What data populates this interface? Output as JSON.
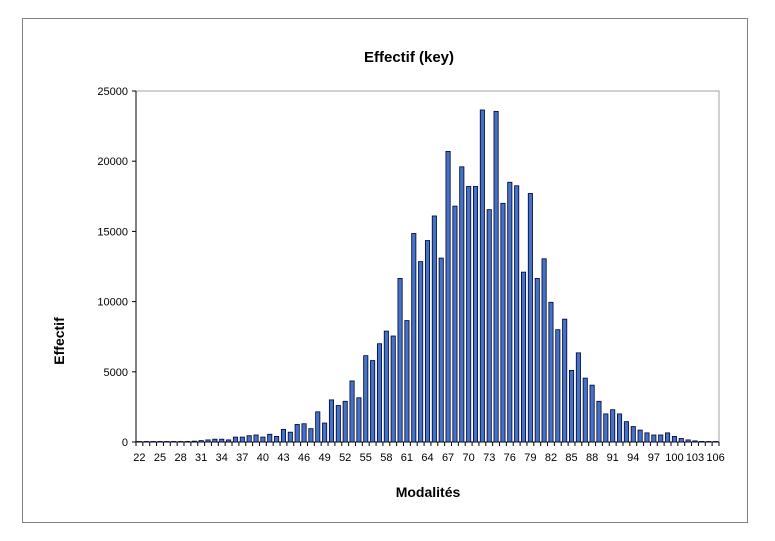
{
  "chart_data": {
    "type": "bar",
    "title": "Effectif (key)",
    "xlabel": "Modalités",
    "ylabel": "Effectif",
    "ylim": [
      0,
      25000
    ],
    "yticks": [
      "0",
      "5000",
      "10000",
      "15000",
      "20000",
      "25000"
    ],
    "xtick_labels": [
      "22",
      "25",
      "28",
      "31",
      "34",
      "37",
      "40",
      "43",
      "46",
      "49",
      "52",
      "55",
      "58",
      "61",
      "64",
      "67",
      "70",
      "73",
      "76",
      "79",
      "82",
      "85",
      "88",
      "91",
      "94",
      "97",
      "100",
      "103",
      "106"
    ],
    "grid": false,
    "legend": "none",
    "bar_color": "#4472C4",
    "categories": [
      22,
      23,
      24,
      25,
      26,
      27,
      28,
      29,
      30,
      31,
      32,
      33,
      34,
      35,
      36,
      37,
      38,
      39,
      40,
      41,
      42,
      43,
      44,
      45,
      46,
      47,
      48,
      49,
      50,
      51,
      52,
      53,
      54,
      55,
      56,
      57,
      58,
      59,
      60,
      61,
      62,
      63,
      64,
      65,
      66,
      67,
      68,
      69,
      70,
      71,
      72,
      73,
      74,
      75,
      76,
      77,
      78,
      79,
      80,
      81,
      82,
      83,
      84,
      85,
      86,
      87,
      88,
      89,
      90,
      91,
      92,
      93,
      94,
      95,
      96,
      97,
      98,
      99,
      100,
      101,
      102,
      103,
      104,
      105,
      106
    ],
    "values": [
      2,
      3,
      5,
      8,
      12,
      15,
      25,
      40,
      60,
      100,
      150,
      200,
      200,
      150,
      350,
      350,
      450,
      500,
      350,
      550,
      400,
      900,
      700,
      1250,
      1300,
      950,
      2150,
      1350,
      3000,
      2600,
      2900,
      4350,
      3150,
      6150,
      5800,
      7000,
      7900,
      7550,
      11650,
      8650,
      14850,
      12850,
      14350,
      16100,
      13100,
      20700,
      16800,
      19600,
      18200,
      18200,
      23650,
      16550,
      23550,
      17000,
      18500,
      18250,
      12100,
      17700,
      11650,
      13050,
      9950,
      8000,
      8750,
      5100,
      6350,
      4550,
      4050,
      2900,
      2000,
      2300,
      2000,
      1450,
      1100,
      850,
      650,
      500,
      500,
      650,
      400,
      250,
      150,
      80,
      40,
      20,
      10
    ]
  }
}
